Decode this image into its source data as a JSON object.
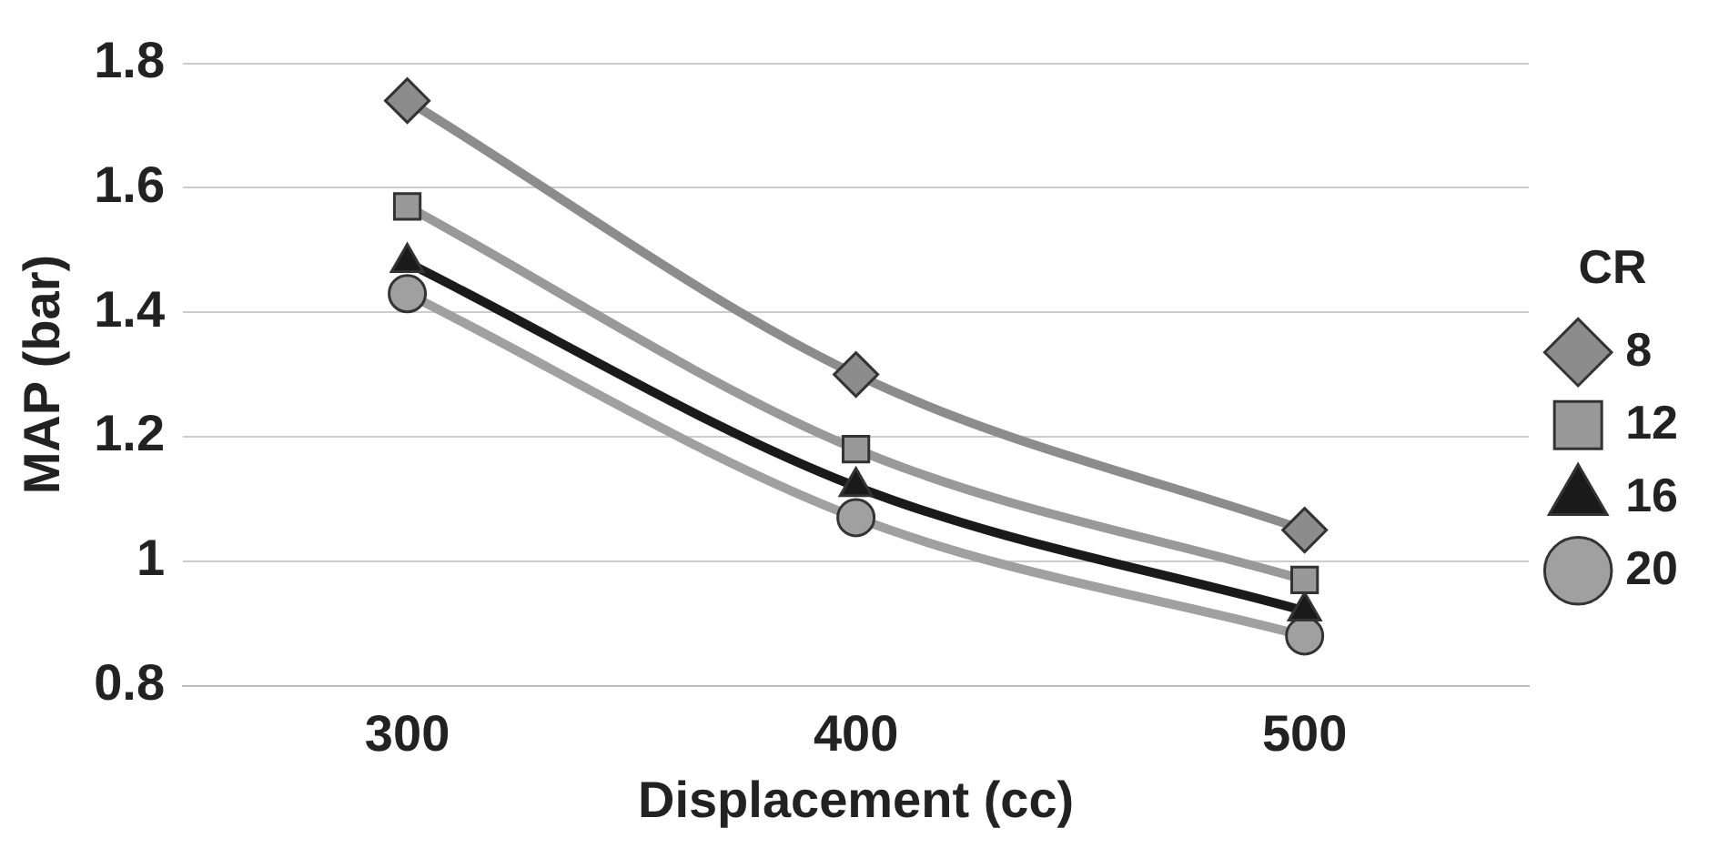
{
  "chart_data": {
    "type": "line",
    "xlabel": "Displacement (cc)",
    "ylabel": "MAP (bar)",
    "legend_title": "CR",
    "categories": [
      "300",
      "400",
      "500"
    ],
    "ylim": [
      0.8,
      1.8
    ],
    "yticks": [
      0.8,
      1,
      1.2,
      1.4,
      1.6,
      1.8
    ],
    "grid": "y",
    "legend": "right",
    "line_style": "solid",
    "series": [
      {
        "name": "8",
        "color": "#8c8c8c",
        "marker": "diamond",
        "values": [
          1.74,
          1.3,
          1.05
        ]
      },
      {
        "name": "12",
        "color": "#999999",
        "marker": "square",
        "values": [
          1.57,
          1.18,
          0.97
        ]
      },
      {
        "name": "16",
        "color": "#1a1a1a",
        "marker": "triangle",
        "values": [
          1.48,
          1.12,
          0.92
        ]
      },
      {
        "name": "20",
        "color": "#a0a0a0",
        "marker": "circle",
        "values": [
          1.43,
          1.07,
          0.88
        ]
      }
    ]
  }
}
